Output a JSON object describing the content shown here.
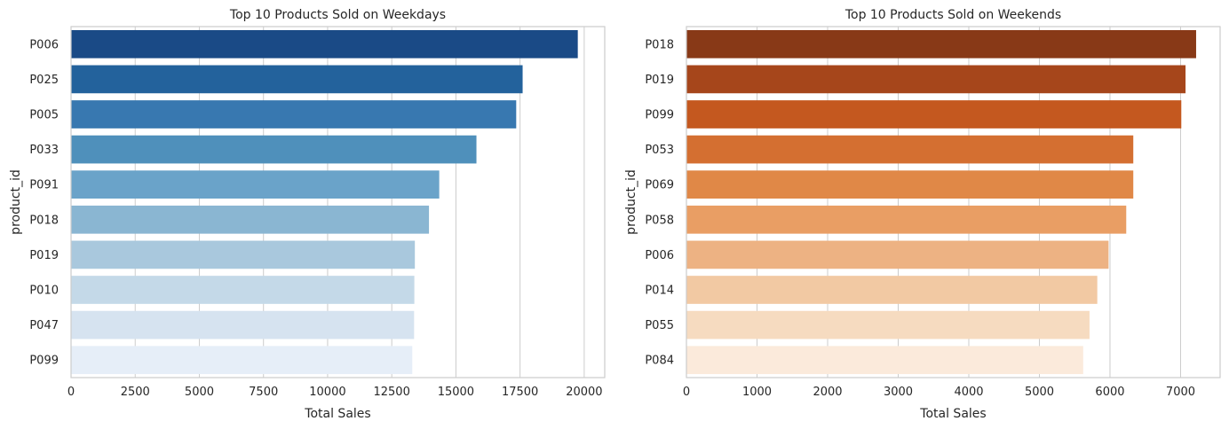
{
  "chart_data": [
    {
      "type": "bar",
      "orientation": "horizontal",
      "title": "Top 10 Products Sold on Weekdays",
      "xlabel": "Total Sales",
      "ylabel": "product_id",
      "categories": [
        "P006",
        "P025",
        "P005",
        "P033",
        "P091",
        "P018",
        "P019",
        "P010",
        "P047",
        "P099"
      ],
      "values": [
        19750,
        17600,
        17350,
        15800,
        14350,
        13950,
        13400,
        13380,
        13370,
        13300
      ],
      "xlim": [
        0,
        20800
      ],
      "xticks": [
        0,
        2500,
        5000,
        7500,
        10000,
        12500,
        15000,
        17500,
        20000
      ],
      "grid": true,
      "colors": [
        "#1a4a86",
        "#23629c",
        "#3878b0",
        "#4f90bb",
        "#6aa3c9",
        "#8ab6d2",
        "#a9c8dd",
        "#c4d9e8",
        "#d6e3f0",
        "#e6eef8"
      ]
    },
    {
      "type": "bar",
      "orientation": "horizontal",
      "title": "Top 10 Products Sold on Weekends",
      "xlabel": "Total Sales",
      "ylabel": "product_id",
      "categories": [
        "P018",
        "P019",
        "P099",
        "P053",
        "P069",
        "P058",
        "P006",
        "P014",
        "P055",
        "P084"
      ],
      "values": [
        7220,
        7070,
        7010,
        6330,
        6330,
        6230,
        5980,
        5820,
        5710,
        5620
      ],
      "xlim": [
        0,
        7560
      ],
      "xticks": [
        0,
        1000,
        2000,
        3000,
        4000,
        5000,
        6000,
        7000
      ],
      "grid": true,
      "colors": [
        "#883917",
        "#a6461b",
        "#c4581f",
        "#d46f31",
        "#e08847",
        "#e99e64",
        "#edb283",
        "#f2c9a3",
        "#f6dbc0",
        "#fbeadb"
      ]
    }
  ]
}
